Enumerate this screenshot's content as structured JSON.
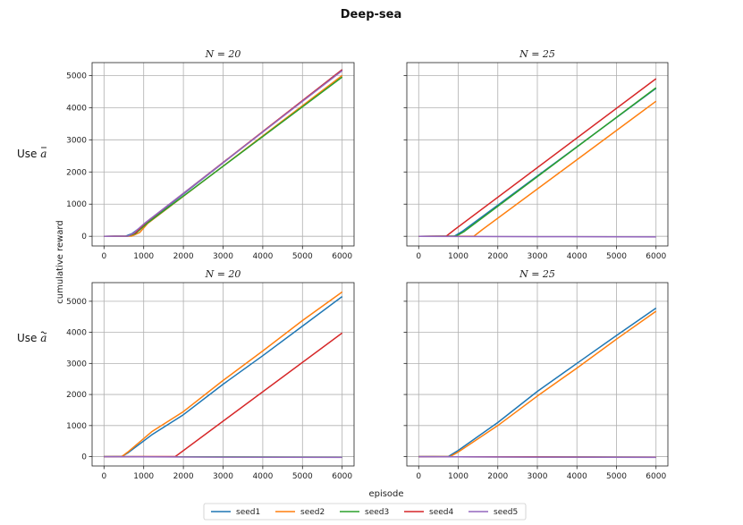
{
  "chart_data": {
    "type": "line",
    "title": "Deep-sea",
    "xlabel": "episode",
    "ylabel": "cumulative reward",
    "xlim": [
      -300,
      6300
    ],
    "xticks": [
      0,
      1000,
      2000,
      3000,
      4000,
      5000,
      6000
    ],
    "rows": [
      {
        "label": "Use ā",
        "bar_char": "a",
        "prefix": "Use "
      },
      {
        "label": "Use ã",
        "bar_char": "a",
        "prefix": "Use "
      }
    ],
    "grid": true,
    "legend_position": "bottom-center",
    "series_names": [
      "seed1",
      "seed2",
      "seed3",
      "seed4",
      "seed5"
    ],
    "series_colors": [
      "#1f77b4",
      "#ff7f0e",
      "#2ca02c",
      "#d62728",
      "#9467bd"
    ],
    "panels": [
      {
        "title": "N = 20",
        "row": 0,
        "col": 0,
        "ylim": [
          -300,
          5400
        ],
        "yticks": [
          0,
          1000,
          2000,
          3000,
          4000,
          5000
        ],
        "series": [
          {
            "name": "seed1",
            "points": [
              [
                0,
                0
              ],
              [
                550,
                5
              ],
              [
                700,
                80
              ],
              [
                1000,
                350
              ],
              [
                6000,
                5180
              ]
            ]
          },
          {
            "name": "seed2",
            "points": [
              [
                0,
                0
              ],
              [
                700,
                5
              ],
              [
                900,
                120
              ],
              [
                1100,
                400
              ],
              [
                6000,
                5000
              ]
            ]
          },
          {
            "name": "seed3",
            "points": [
              [
                0,
                0
              ],
              [
                600,
                5
              ],
              [
                800,
                90
              ],
              [
                1100,
                420
              ],
              [
                6000,
                4950
              ]
            ]
          },
          {
            "name": "seed4",
            "points": [
              [
                0,
                0
              ],
              [
                600,
                5
              ],
              [
                800,
                120
              ],
              [
                1050,
                420
              ],
              [
                6000,
                5180
              ]
            ]
          },
          {
            "name": "seed5",
            "points": [
              [
                0,
                0
              ],
              [
                600,
                5
              ],
              [
                750,
                100
              ],
              [
                1000,
                380
              ],
              [
                6000,
                5150
              ]
            ]
          }
        ]
      },
      {
        "title": "N = 25",
        "row": 0,
        "col": 1,
        "ylim": [
          -300,
          5400
        ],
        "yticks": [
          0,
          1000,
          2000,
          3000,
          4000,
          5000
        ],
        "series": [
          {
            "name": "seed1",
            "points": [
              [
                0,
                0
              ],
              [
                900,
                5
              ],
              [
                1100,
                150
              ],
              [
                6000,
                4600
              ]
            ]
          },
          {
            "name": "seed2",
            "points": [
              [
                0,
                0
              ],
              [
                1400,
                5
              ],
              [
                1600,
                200
              ],
              [
                6000,
                4200
              ]
            ]
          },
          {
            "name": "seed3",
            "points": [
              [
                0,
                0
              ],
              [
                950,
                5
              ],
              [
                1150,
                150
              ],
              [
                6000,
                4620
              ]
            ]
          },
          {
            "name": "seed4",
            "points": [
              [
                0,
                0
              ],
              [
                700,
                5
              ],
              [
                900,
                200
              ],
              [
                6000,
                4900
              ]
            ]
          },
          {
            "name": "seed5",
            "points": [
              [
                0,
                0
              ],
              [
                3000,
                -10
              ],
              [
                6000,
                -20
              ]
            ]
          }
        ]
      },
      {
        "title": "N = 20",
        "row": 1,
        "col": 0,
        "ylim": [
          -300,
          5600
        ],
        "yticks": [
          0,
          1000,
          2000,
          3000,
          4000,
          5000
        ],
        "series": [
          {
            "name": "seed1",
            "points": [
              [
                0,
                0
              ],
              [
                450,
                5
              ],
              [
                600,
                120
              ],
              [
                1200,
                700
              ],
              [
                2000,
                1350
              ],
              [
                3000,
                2330
              ],
              [
                4000,
                3250
              ],
              [
                5000,
                4200
              ],
              [
                6000,
                5150
              ]
            ]
          },
          {
            "name": "seed2",
            "points": [
              [
                0,
                0
              ],
              [
                450,
                5
              ],
              [
                600,
                150
              ],
              [
                1200,
                800
              ],
              [
                2000,
                1450
              ],
              [
                3000,
                2450
              ],
              [
                4000,
                3400
              ],
              [
                5000,
                4380
              ],
              [
                6000,
                5300
              ]
            ]
          },
          {
            "name": "seed3",
            "points": [
              [
                0,
                0
              ],
              [
                3000,
                -10
              ],
              [
                6000,
                -20
              ]
            ]
          },
          {
            "name": "seed4",
            "points": [
              [
                0,
                0
              ],
              [
                1800,
                5
              ],
              [
                6000,
                3980
              ]
            ]
          },
          {
            "name": "seed5",
            "points": [
              [
                0,
                0
              ],
              [
                3000,
                -15
              ],
              [
                6000,
                -25
              ]
            ]
          }
        ]
      },
      {
        "title": "N = 25",
        "row": 1,
        "col": 1,
        "ylim": [
          -300,
          5600
        ],
        "yticks": [
          0,
          1000,
          2000,
          3000,
          4000,
          5000
        ],
        "series": [
          {
            "name": "seed1",
            "points": [
              [
                0,
                0
              ],
              [
                750,
                5
              ],
              [
                1000,
                200
              ],
              [
                2000,
                1100
              ],
              [
                3000,
                2100
              ],
              [
                4000,
                3000
              ],
              [
                5000,
                3900
              ],
              [
                6000,
                4780
              ]
            ]
          },
          {
            "name": "seed2",
            "points": [
              [
                0,
                0
              ],
              [
                800,
                5
              ],
              [
                1000,
                150
              ],
              [
                2000,
                1000
              ],
              [
                3000,
                1950
              ],
              [
                4000,
                2850
              ],
              [
                5000,
                3780
              ],
              [
                6000,
                4680
              ]
            ]
          },
          {
            "name": "seed3",
            "points": [
              [
                0,
                0
              ],
              [
                3000,
                -10
              ],
              [
                6000,
                -20
              ]
            ]
          },
          {
            "name": "seed4",
            "points": [
              [
                0,
                0
              ],
              [
                3000,
                -10
              ],
              [
                6000,
                -20
              ]
            ]
          },
          {
            "name": "seed5",
            "points": [
              [
                0,
                0
              ],
              [
                3000,
                -15
              ],
              [
                6000,
                -25
              ]
            ]
          }
        ]
      }
    ]
  }
}
